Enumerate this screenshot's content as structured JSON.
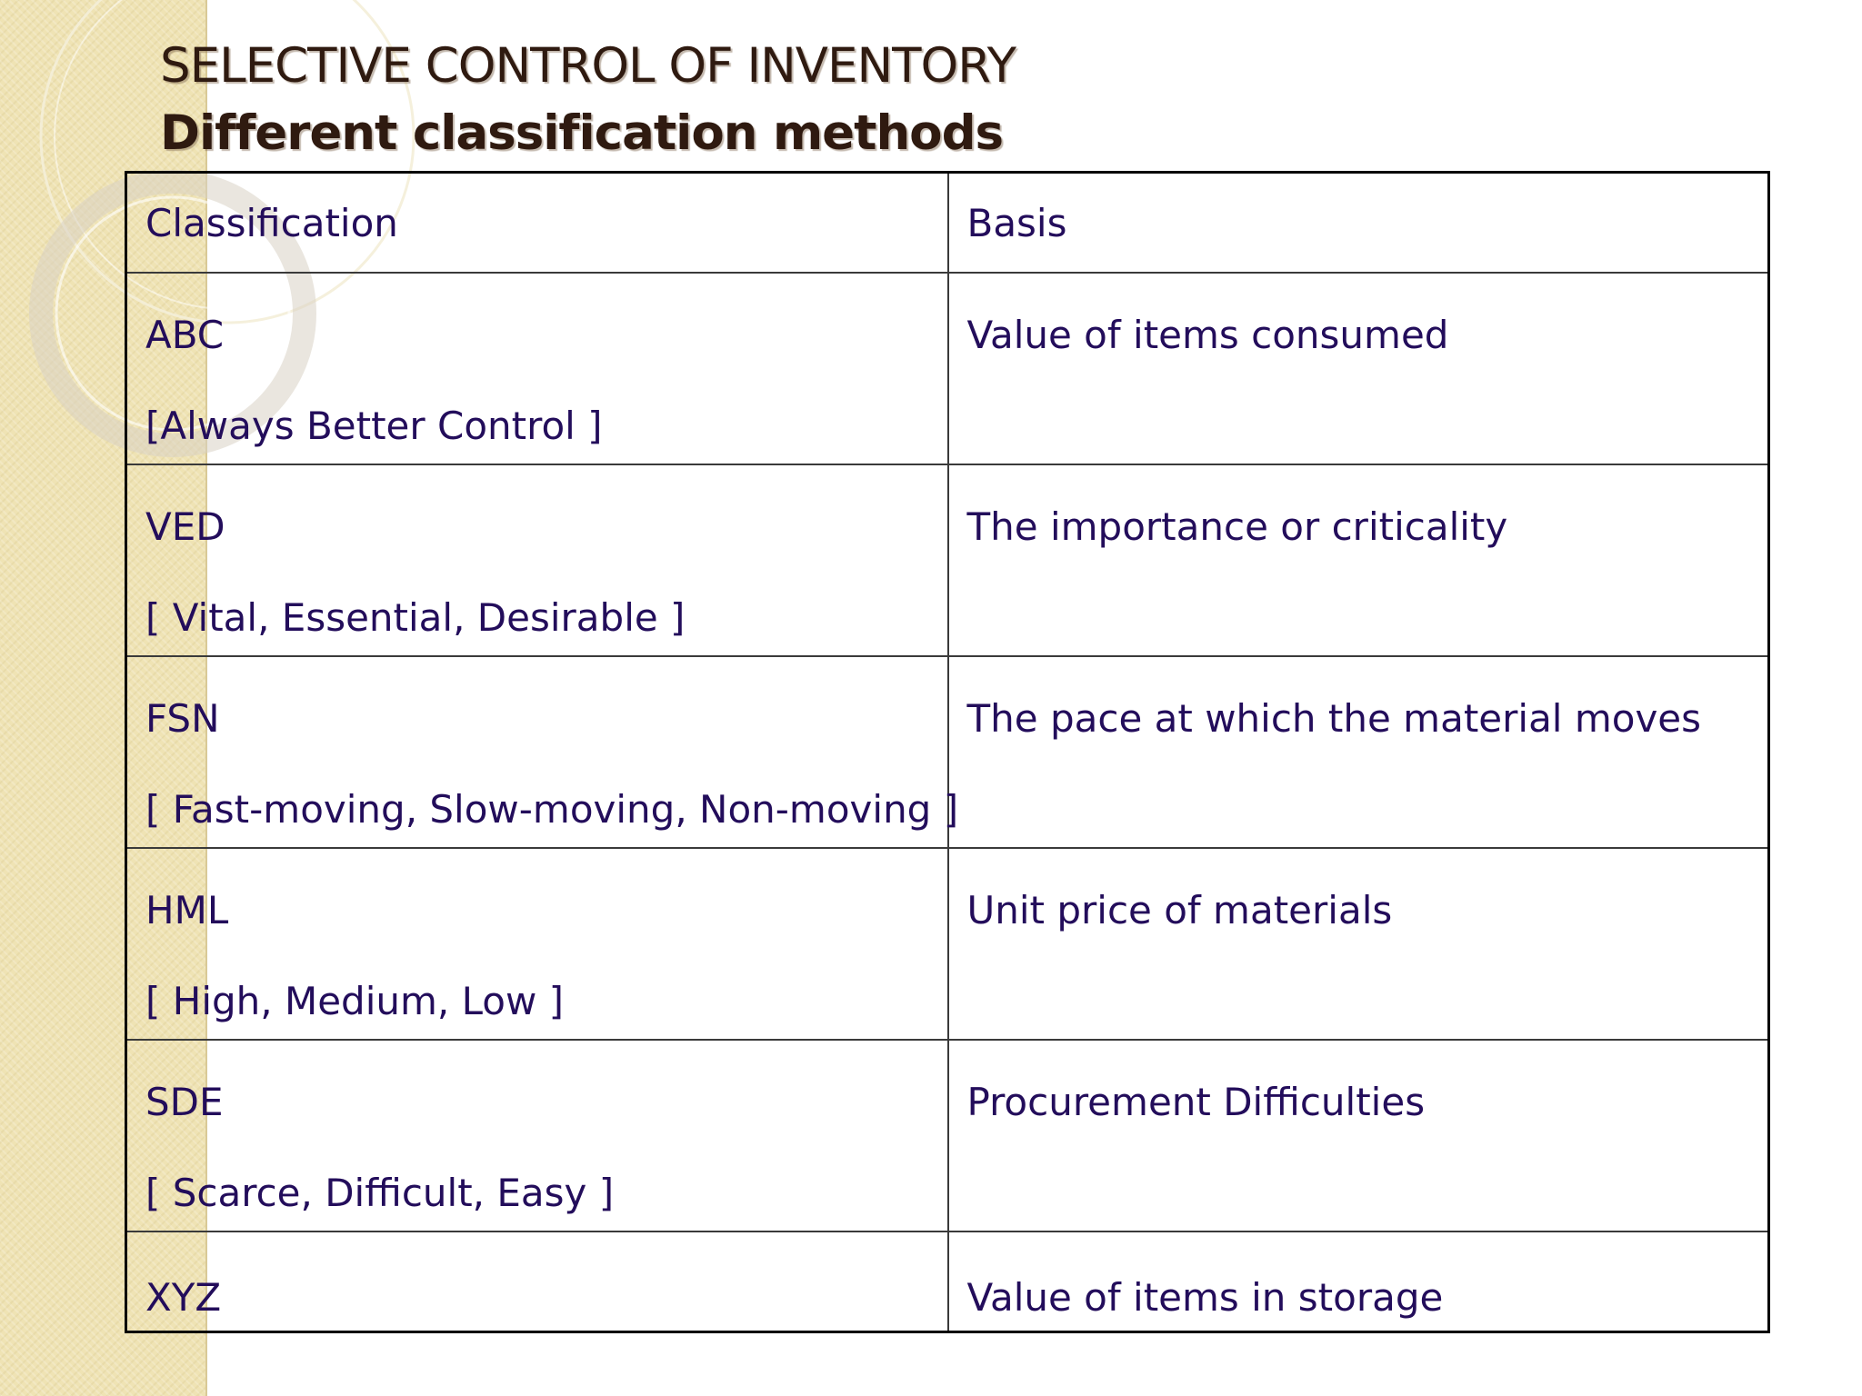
{
  "slide": {
    "title_line1": "SELECTIVE CONTROL OF INVENTORY",
    "title_line2": "Different classification methods"
  },
  "table": {
    "headers": {
      "classification": "Classification",
      "basis": "Basis"
    },
    "rows": [
      {
        "code": "ABC",
        "expansion": "[Always Better Control ]",
        "basis": "Value of items consumed"
      },
      {
        "code": "VED",
        "expansion": "[ Vital, Essential, Desirable ]",
        "basis": "The importance or criticality"
      },
      {
        "code": "FSN",
        "expansion": "[ Fast-moving, Slow-moving, Non-moving ]",
        "basis": "The pace at which the material moves"
      },
      {
        "code": "HML",
        "expansion": "[ High, Medium, Low ]",
        "basis": "Unit price of materials"
      },
      {
        "code": "SDE",
        "expansion": "[ Scarce, Difficult, Easy ]",
        "basis": "Procurement Difficulties"
      },
      {
        "code": "XYZ",
        "basis": "Value of items in storage"
      }
    ]
  },
  "colors": {
    "background": "#ffffff",
    "side_band": "#efe3b4",
    "title_text": "#2f1a10",
    "table_text": "#230d5b",
    "table_border": "#000000"
  }
}
